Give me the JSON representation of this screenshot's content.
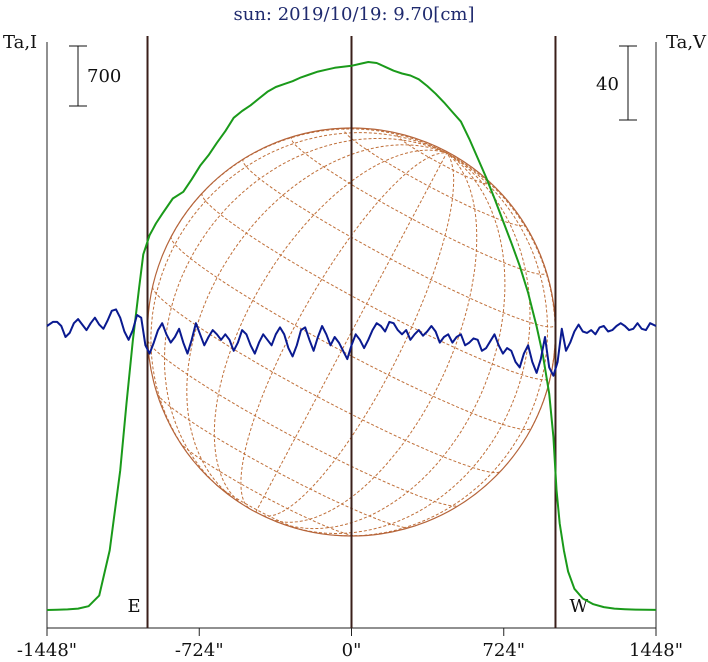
{
  "chart_data": {
    "type": "line",
    "title": "sun: 2019/10/19: 9.70[cm]",
    "left_axis_label": "Ta,I",
    "right_axis_label": "Ta,V",
    "left_scale_bar_label": "700",
    "right_scale_bar_label": "40",
    "x_ticks": [
      {
        "value": -1448,
        "label": "-1448\""
      },
      {
        "value": -724,
        "label": "-724\""
      },
      {
        "value": 0,
        "label": "0\""
      },
      {
        "value": 724,
        "label": "724\""
      },
      {
        "value": 1448,
        "label": "1448\""
      }
    ],
    "xlim": [
      -1448,
      1448
    ],
    "limb_markers": [
      {
        "value": -970,
        "label": "E"
      },
      {
        "value": 970,
        "label": "W"
      }
    ],
    "disk_radius_arcsec": 970,
    "series": [
      {
        "name": "Ta,I",
        "color": "#1a9a1a",
        "x": [
          -1448,
          -1400,
          -1350,
          -1300,
          -1250,
          -1200,
          -1150,
          -1100,
          -1070,
          -1040,
          -1010,
          -990,
          -975,
          -960,
          -945,
          -930,
          -900,
          -850,
          -800,
          -760,
          -720,
          -680,
          -640,
          -600,
          -560,
          -520,
          -480,
          -440,
          -400,
          -360,
          -320,
          -280,
          -240,
          -200,
          -160,
          -120,
          -80,
          -40,
          0,
          40,
          80,
          120,
          160,
          200,
          240,
          280,
          320,
          360,
          400,
          440,
          480,
          520,
          560,
          600,
          640,
          680,
          720,
          760,
          800,
          840,
          880,
          910,
          940,
          960,
          975,
          990,
          1010,
          1030,
          1060,
          1100,
          1150,
          1200,
          1250,
          1300,
          1350,
          1400,
          1448
        ],
        "y": [
          0,
          2,
          6,
          15,
          40,
          150,
          620,
          1450,
          2150,
          2800,
          3350,
          3700,
          3800,
          3900,
          3960,
          4020,
          4120,
          4280,
          4350,
          4480,
          4620,
          4730,
          4860,
          4980,
          5120,
          5190,
          5250,
          5320,
          5390,
          5440,
          5470,
          5500,
          5540,
          5570,
          5600,
          5620,
          5640,
          5650,
          5660,
          5680,
          5700,
          5690,
          5650,
          5610,
          5580,
          5560,
          5520,
          5450,
          5370,
          5280,
          5180,
          5080,
          4900,
          4700,
          4500,
          4280,
          4050,
          3820,
          3580,
          3300,
          2950,
          2650,
          2250,
          1800,
          1250,
          900,
          620,
          400,
          220,
          120,
          60,
          30,
          15,
          8,
          4,
          2,
          1
        ]
      },
      {
        "name": "Ta,V",
        "color": "#0a1a90",
        "x": [
          -1448,
          -1420,
          -1400,
          -1380,
          -1360,
          -1340,
          -1320,
          -1300,
          -1280,
          -1260,
          -1240,
          -1220,
          -1200,
          -1180,
          -1160,
          -1140,
          -1120,
          -1100,
          -1080,
          -1060,
          -1040,
          -1020,
          -1000,
          -980,
          -960,
          -940,
          -920,
          -900,
          -880,
          -860,
          -840,
          -820,
          -800,
          -780,
          -760,
          -740,
          -720,
          -700,
          -680,
          -660,
          -640,
          -620,
          -600,
          -580,
          -560,
          -540,
          -520,
          -500,
          -480,
          -460,
          -440,
          -420,
          -400,
          -380,
          -360,
          -340,
          -320,
          -300,
          -280,
          -260,
          -240,
          -220,
          -200,
          -180,
          -160,
          -140,
          -120,
          -100,
          -80,
          -60,
          -40,
          -20,
          0,
          20,
          40,
          60,
          80,
          100,
          120,
          140,
          160,
          180,
          200,
          220,
          240,
          260,
          280,
          300,
          320,
          340,
          360,
          380,
          400,
          420,
          440,
          460,
          480,
          500,
          520,
          540,
          560,
          580,
          600,
          620,
          640,
          660,
          680,
          700,
          720,
          740,
          760,
          780,
          800,
          820,
          840,
          860,
          880,
          900,
          920,
          940,
          960,
          980,
          1000,
          1020,
          1040,
          1060,
          1080,
          1100,
          1120,
          1140,
          1160,
          1180,
          1200,
          1220,
          1240,
          1260,
          1280,
          1300,
          1320,
          1340,
          1360,
          1380,
          1400,
          1420,
          1448
        ],
        "y": [
          0,
          3,
          3,
          0,
          -8,
          -5,
          2,
          5,
          1,
          -3,
          2,
          6,
          1,
          -2,
          4,
          11,
          12,
          6,
          -4,
          -10,
          -3,
          8,
          6,
          -14,
          -20,
          -12,
          -3,
          2,
          -6,
          -12,
          -8,
          -2,
          -12,
          -20,
          -10,
          2,
          -6,
          -14,
          -8,
          -3,
          -6,
          -10,
          -6,
          -10,
          -18,
          -12,
          -3,
          -6,
          -14,
          -20,
          -12,
          -6,
          -10,
          -14,
          -6,
          -1,
          -6,
          -16,
          -22,
          -14,
          -3,
          -1,
          -10,
          -18,
          -8,
          0,
          -6,
          -14,
          -8,
          -12,
          -18,
          -24,
          -14,
          -6,
          -10,
          -16,
          -10,
          -3,
          2,
          0,
          -4,
          3,
          2,
          -3,
          -6,
          -3,
          -10,
          -6,
          -3,
          -7,
          -4,
          0,
          -4,
          -12,
          -8,
          -6,
          -12,
          -8,
          -6,
          -14,
          -12,
          -9,
          -10,
          -18,
          -16,
          -11,
          -6,
          -14,
          -20,
          -16,
          -18,
          -26,
          -30,
          -20,
          -14,
          -26,
          -34,
          -24,
          -8,
          -30,
          -36,
          -26,
          -2,
          -18,
          -12,
          -4,
          1,
          -4,
          -5,
          -3,
          -6,
          -1,
          0,
          -4,
          -3,
          0,
          2,
          0,
          -3,
          -2,
          2,
          -2,
          -3,
          2,
          0
        ]
      }
    ]
  }
}
